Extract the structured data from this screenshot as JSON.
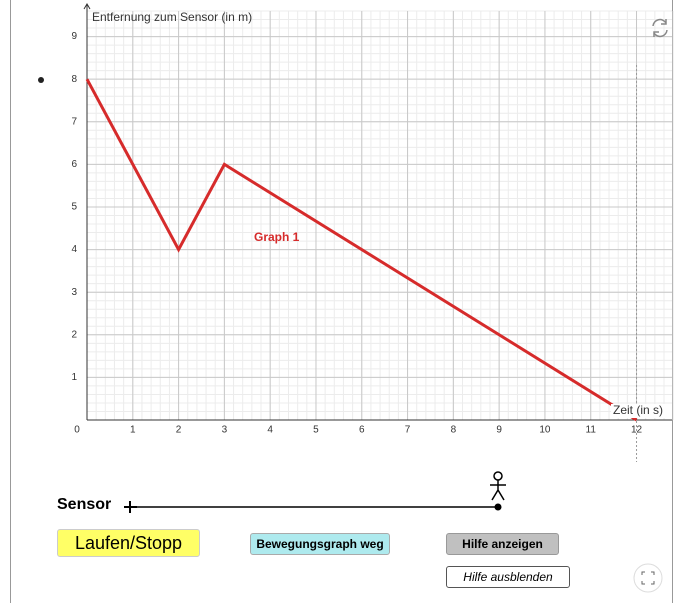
{
  "chart_data": {
    "type": "line",
    "y_label": "Entfernung zum Sensor (in m)",
    "x_label": "Zeit (in s)",
    "annotation": "Graph 1",
    "x": [
      0,
      2,
      3,
      12
    ],
    "series": [
      {
        "color": "#d62b2b",
        "values": [
          8,
          4,
          6,
          0
        ]
      }
    ],
    "xlim": [
      0,
      12.6
    ],
    "ylim": [
      0,
      9.6
    ],
    "xticks": [
      0,
      1,
      2,
      3,
      4,
      5,
      6,
      7,
      8,
      9,
      10,
      11,
      12
    ],
    "yticks": [
      1,
      2,
      3,
      4,
      5,
      6,
      7,
      8,
      9
    ],
    "grid": true
  },
  "controls": {
    "sensor": "Sensor",
    "start_stop": "Laufen/Stopp",
    "remove_graph": "Bewegungsgraph weg",
    "show_help": "Hilfe anzeigen",
    "hide_help": "Hilfe ausblenden"
  }
}
